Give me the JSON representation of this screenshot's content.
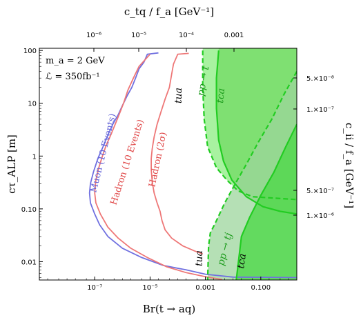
{
  "chart_data": {
    "type": "line",
    "xlabel": "Br(t → aq)",
    "ylabel": "cτ_ALP [m]",
    "top_axis_label": "c_tq / f_a [GeV⁻¹]",
    "right_axis_label": "c_ii / f_a [GeV⁻¹]",
    "x_scale": "log",
    "y_scale": "log",
    "xlim": [
      1e-09,
      2.0
    ],
    "ylim": [
      0.0045,
      110
    ],
    "x_ticks": [
      "10⁻⁷",
      "10⁻⁵",
      "0.001",
      "0.100"
    ],
    "y_ticks": [
      "0.01",
      "0.10",
      "1",
      "10",
      "100"
    ],
    "top_ticks": [
      "10⁻⁶",
      "10⁻⁵",
      "10⁻⁴",
      "0.001"
    ],
    "right_ticks": [
      "5.×10⁻⁸",
      "1.×10⁻⁷",
      "5.×10⁻⁷",
      "1.×10⁻⁶"
    ],
    "info_lines": [
      "m_a = 2 GeV",
      "ℒ = 350fb⁻¹"
    ],
    "series": [
      {
        "name": "Muon (10 Events)",
        "color": "#7070e0",
        "points": [
          [
            2e-05,
            90
          ],
          [
            8e-06,
            85
          ],
          [
            6e-06,
            60
          ],
          [
            4e-06,
            45
          ],
          [
            3e-06,
            30
          ],
          [
            2.2e-06,
            20
          ],
          [
            1.5e-06,
            14
          ],
          [
            1e-06,
            9
          ],
          [
            7e-07,
            6
          ],
          [
            4.5e-07,
            4
          ],
          [
            3e-07,
            2.5
          ],
          [
            2e-07,
            1.5
          ],
          [
            1.3e-07,
            0.9
          ],
          [
            9e-08,
            0.5
          ],
          [
            7e-08,
            0.3
          ],
          [
            6.5e-08,
            0.2
          ],
          [
            7e-08,
            0.13
          ],
          [
            1e-07,
            0.08
          ],
          [
            1.5e-07,
            0.05
          ],
          [
            3e-07,
            0.03
          ],
          [
            1e-06,
            0.018
          ],
          [
            5e-06,
            0.012
          ],
          [
            3e-05,
            0.0085
          ],
          [
            0.0002,
            0.007
          ],
          [
            0.001,
            0.0058
          ],
          [
            0.01,
            0.0051
          ],
          [
            2,
            0.005
          ]
        ]
      },
      {
        "name": "Hadron (10 Events)",
        "color": "#ee7777",
        "points": [
          [
            1e-05,
            85
          ],
          [
            4e-06,
            50
          ],
          [
            2.5e-06,
            30
          ],
          [
            1.6e-06,
            18
          ],
          [
            1.1e-06,
            10
          ],
          [
            8e-07,
            6.5
          ],
          [
            5.5e-07,
            4
          ],
          [
            3.8e-07,
            2.5
          ],
          [
            2.6e-07,
            1.6
          ],
          [
            1.9e-07,
            1
          ],
          [
            1.4e-07,
            0.6
          ],
          [
            1.1e-07,
            0.35
          ],
          [
            1e-07,
            0.2
          ],
          [
            1.1e-07,
            0.13
          ],
          [
            1.6e-07,
            0.08
          ],
          [
            3e-07,
            0.045
          ],
          [
            7e-07,
            0.028
          ],
          [
            2e-06,
            0.018
          ],
          [
            8e-06,
            0.012
          ],
          [
            4e-05,
            0.008
          ],
          [
            0.0002,
            0.0062
          ],
          [
            0.001,
            0.0052
          ],
          [
            0.004,
            0.0046
          ]
        ]
      },
      {
        "name": "Hadron (2σ)",
        "color": "#ee7777",
        "points": [
          [
            0.00025,
            88
          ],
          [
            0.0001,
            85
          ],
          [
            7e-05,
            55
          ],
          [
            6e-05,
            35
          ],
          [
            5e-05,
            20
          ],
          [
            3.5e-05,
            12
          ],
          [
            2.5e-05,
            7
          ],
          [
            1.8e-05,
            4
          ],
          [
            1.4e-05,
            2.3
          ],
          [
            1.2e-05,
            1.4
          ],
          [
            1.1e-05,
            0.9
          ],
          [
            1.1e-05,
            0.55
          ],
          [
            1.2e-05,
            0.32
          ],
          [
            1.4e-05,
            0.2
          ],
          [
            1.8e-05,
            0.13
          ],
          [
            2.3e-05,
            0.09
          ],
          [
            2.7e-05,
            0.06
          ],
          [
            3.5e-05,
            0.04
          ],
          [
            6e-05,
            0.028
          ],
          [
            0.00015,
            0.02
          ],
          [
            0.0004,
            0.016
          ],
          [
            0.0008,
            0.014
          ]
        ]
      },
      {
        "name": "pp → t (dashed, tua)",
        "color": "#22cc22",
        "points": [
          [
            0.0008,
            100
          ],
          [
            0.0008,
            20
          ],
          [
            0.0009,
            5
          ],
          [
            0.0012,
            1.5
          ],
          [
            0.0025,
            0.6
          ],
          [
            0.006,
            0.35
          ],
          [
            0.015,
            0.22
          ],
          [
            0.05,
            0.17
          ],
          [
            2,
            0.15
          ]
        ]
      },
      {
        "name": "pp → t (solid, tca)",
        "color": "#22cc22",
        "points": [
          [
            0.003,
            100
          ],
          [
            0.0025,
            30
          ],
          [
            0.0025,
            8
          ],
          [
            0.003,
            2
          ],
          [
            0.0045,
            0.8
          ],
          [
            0.009,
            0.35
          ],
          [
            0.03,
            0.17
          ],
          [
            0.12,
            0.11
          ],
          [
            0.5,
            0.09
          ],
          [
            2,
            0.08
          ]
        ]
      },
      {
        "name": "pp → tj (dashed, tua)",
        "color": "#22cc22",
        "points": [
          [
            2,
            40
          ],
          [
            0.7,
            15
          ],
          [
            0.25,
            5
          ],
          [
            0.08,
            1.8
          ],
          [
            0.03,
            0.7
          ],
          [
            0.012,
            0.3
          ],
          [
            0.005,
            0.13
          ],
          [
            0.0025,
            0.06
          ],
          [
            0.0015,
            0.035
          ],
          [
            0.0013,
            0.02
          ],
          [
            0.0012,
            0.0045
          ]
        ]
      },
      {
        "name": "pp → tj (solid, tca)",
        "color": "#22cc22",
        "points": [
          [
            2,
            4
          ],
          [
            0.8,
            1.5
          ],
          [
            0.3,
            0.5
          ],
          [
            0.1,
            0.18
          ],
          [
            0.04,
            0.07
          ],
          [
            0.02,
            0.03
          ],
          [
            0.013,
            0.0045
          ]
        ]
      }
    ],
    "shaded_regions": [
      {
        "name": "pp → t tua",
        "color": "#a8f2a0"
      },
      {
        "name": "pp → t tca",
        "color": "#7fe072"
      },
      {
        "name": "pp → tj tua",
        "color": "#9cd69c"
      },
      {
        "name": "pp → tj tca",
        "color": "#4fd84a"
      }
    ],
    "curve_labels": [
      {
        "text": "Muon (10 Events)",
        "color": "#6464d8"
      },
      {
        "text": "Hadron (10 Events)",
        "color": "#e04848"
      },
      {
        "text": "Hadron (2σ)",
        "color": "#e04848"
      },
      {
        "text": "tua",
        "color": "#000000"
      },
      {
        "text": "pp → t",
        "color": "#1a9a1a"
      },
      {
        "text": "tca",
        "color": "#1a9a1a"
      },
      {
        "text": "tua",
        "color": "#000000"
      },
      {
        "text": "pp → tj",
        "color": "#1a9a1a"
      },
      {
        "text": "tca",
        "color": "#000000"
      }
    ]
  }
}
